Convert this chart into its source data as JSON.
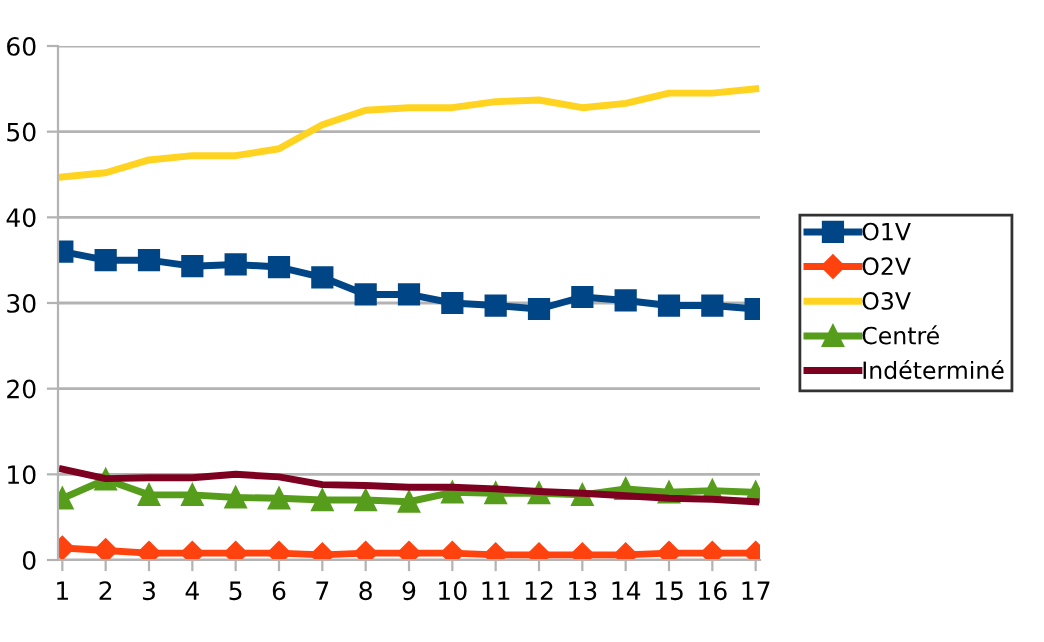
{
  "chart_data": {
    "type": "line",
    "categories": [
      "1",
      "2",
      "3",
      "4",
      "5",
      "6",
      "7",
      "8",
      "9",
      "10",
      "11",
      "12",
      "13",
      "14",
      "15",
      "16",
      "17"
    ],
    "series": [
      {
        "name": "O1V",
        "color": "#004586",
        "marker": "square",
        "values": [
          36,
          35,
          35,
          34.3,
          34.5,
          34.2,
          33,
          31,
          31,
          30,
          29.7,
          29.3,
          30.7,
          30.3,
          29.7,
          29.7,
          29.3
        ]
      },
      {
        "name": "O2V",
        "color": "#ff420e",
        "marker": "diamond",
        "values": [
          1.4,
          1.1,
          0.8,
          0.8,
          0.8,
          0.8,
          0.6,
          0.8,
          0.8,
          0.8,
          0.6,
          0.6,
          0.6,
          0.6,
          0.8,
          0.8,
          0.8
        ]
      },
      {
        "name": "O3V",
        "color": "#ffd320",
        "marker": "none",
        "values": [
          44.7,
          45.2,
          46.7,
          47.2,
          47.2,
          48,
          50.8,
          52.5,
          52.8,
          52.8,
          53.5,
          53.7,
          52.8,
          53.3,
          54.5,
          54.5,
          55
        ]
      },
      {
        "name": "Centré",
        "color": "#579d1c",
        "marker": "triangle",
        "values": [
          7.2,
          9.4,
          7.6,
          7.6,
          7.3,
          7.2,
          7,
          7,
          6.8,
          7.9,
          7.8,
          7.8,
          7.6,
          8.3,
          7.9,
          8.1,
          7.9
        ]
      },
      {
        "name": "Indéterminé",
        "color": "#7e0021",
        "marker": "none",
        "values": [
          10.6,
          9.5,
          9.6,
          9.6,
          10,
          9.7,
          8.8,
          8.7,
          8.5,
          8.5,
          8.3,
          8,
          7.8,
          7.5,
          7.2,
          7.1,
          6.8
        ]
      }
    ],
    "ylim": [
      0,
      60
    ],
    "yticks": [
      0,
      10,
      20,
      30,
      40,
      50,
      60
    ],
    "grid": "y",
    "legend": "right",
    "line_style": "solid"
  }
}
